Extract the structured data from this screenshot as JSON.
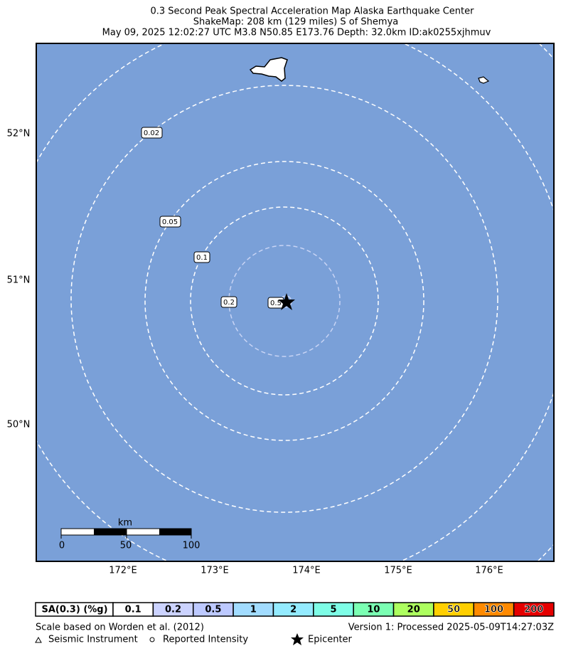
{
  "header": {
    "title_lines": [
      "0.3 Second Peak Spectral Acceleration Map Alaska Earthquake Center",
      "ShakeMap: 208 km (129 miles) S of Shemya",
      "May 09, 2025 12:02:27 UTC M3.8 N50.85 E173.76 Depth: 32.0km ID:ak0255xjhmuv"
    ]
  },
  "map": {
    "lat_labels": [
      "52°N",
      "51°N",
      "50°N"
    ],
    "lon_labels": [
      "172°E",
      "173°E",
      "174°E",
      "175°E",
      "176°E"
    ],
    "contour_labels": [
      "0.02",
      "0.05",
      "0.1",
      "0.2",
      "0.5"
    ],
    "scale_bar": {
      "unit": "km",
      "ticks": [
        "0",
        "50",
        "100"
      ]
    }
  },
  "legend": {
    "label": "SA(0.3) (%g)",
    "bins": [
      {
        "label": "0.1",
        "color": "#ffffff"
      },
      {
        "label": "0.2",
        "color": "#ccd3ff"
      },
      {
        "label": "0.5",
        "color": "#bdc9ff"
      },
      {
        "label": "1",
        "color": "#a2dcff"
      },
      {
        "label": "2",
        "color": "#94ebff"
      },
      {
        "label": "5",
        "color": "#7efde6"
      },
      {
        "label": "10",
        "color": "#7bffb3"
      },
      {
        "label": "20",
        "color": "#adff5f"
      },
      {
        "label": "50",
        "color": "#ffcf00"
      },
      {
        "label": "100",
        "color": "#ff8a00"
      },
      {
        "label": "200",
        "color": "#e50000"
      }
    ]
  },
  "footer": {
    "left": "Scale based on Worden et al. (2012)",
    "right": "Version 1: Processed 2025-05-09T14:27:03Z",
    "keys": [
      "Seismic Instrument",
      "Reported Intensity",
      "Epicenter"
    ]
  }
}
